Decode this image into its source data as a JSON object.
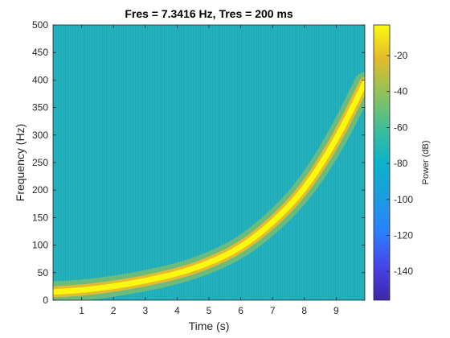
{
  "chart_data": {
    "type": "heatmap",
    "title": "Fres = 7.3416 Hz, Tres = 200 ms",
    "xlabel": "Time (s)",
    "ylabel": "Frequency (Hz)",
    "xlim": [
      0.1,
      9.9
    ],
    "ylim": [
      0,
      500
    ],
    "x_ticks": [
      1,
      2,
      3,
      4,
      5,
      6,
      7,
      8,
      9
    ],
    "y_ticks": [
      0,
      50,
      100,
      150,
      200,
      250,
      300,
      350,
      400,
      450,
      500
    ],
    "colormap": "parula",
    "background_level_db": -85,
    "peak_level_db": -3,
    "ridge": {
      "description_values": "frequency of the peak-power ridge per time",
      "time_s": [
        0.1,
        1,
        2,
        3,
        4,
        5,
        6,
        7,
        8,
        9,
        9.9
      ],
      "freq_hz": [
        15,
        18,
        25,
        35,
        48,
        67,
        95,
        140,
        200,
        290,
        395
      ]
    },
    "colorbar": {
      "label": "Power (dB)",
      "clim": [
        -156,
        -3
      ],
      "ticks": [
        -20,
        -40,
        -60,
        -80,
        -100,
        -120,
        -140
      ]
    },
    "grid": false,
    "legend": "none"
  }
}
